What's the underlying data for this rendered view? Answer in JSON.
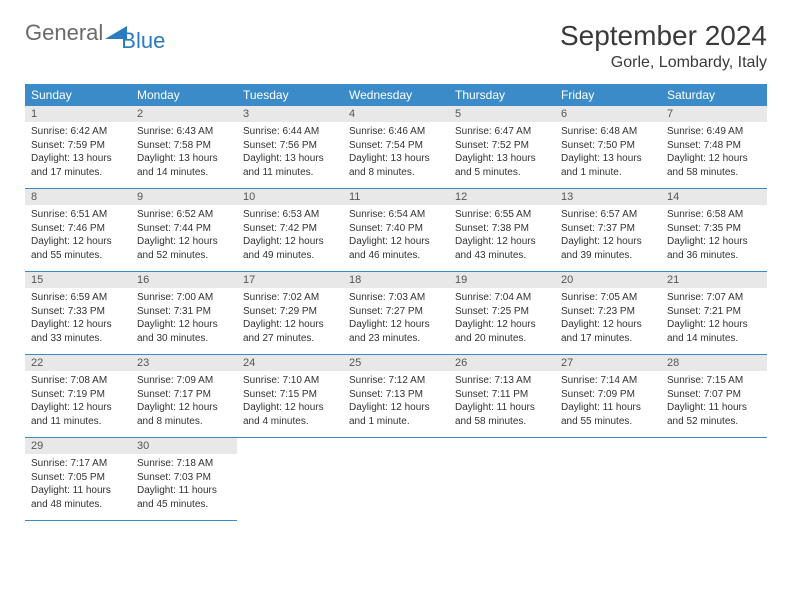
{
  "brand": {
    "part1": "General",
    "part2": "Blue"
  },
  "title": "September 2024",
  "location": "Gorle, Lombardy, Italy",
  "colors": {
    "header_bg": "#3b8bc9",
    "header_fg": "#ffffff",
    "daynum_bg": "#e8e8e8",
    "border": "#3b8bc9",
    "logo_gray": "#6a6a6a",
    "logo_blue": "#2a7bbf"
  },
  "day_headers": [
    "Sunday",
    "Monday",
    "Tuesday",
    "Wednesday",
    "Thursday",
    "Friday",
    "Saturday"
  ],
  "weeks": [
    [
      {
        "n": "1",
        "sr": "Sunrise: 6:42 AM",
        "ss": "Sunset: 7:59 PM",
        "d1": "Daylight: 13 hours",
        "d2": "and 17 minutes."
      },
      {
        "n": "2",
        "sr": "Sunrise: 6:43 AM",
        "ss": "Sunset: 7:58 PM",
        "d1": "Daylight: 13 hours",
        "d2": "and 14 minutes."
      },
      {
        "n": "3",
        "sr": "Sunrise: 6:44 AM",
        "ss": "Sunset: 7:56 PM",
        "d1": "Daylight: 13 hours",
        "d2": "and 11 minutes."
      },
      {
        "n": "4",
        "sr": "Sunrise: 6:46 AM",
        "ss": "Sunset: 7:54 PM",
        "d1": "Daylight: 13 hours",
        "d2": "and 8 minutes."
      },
      {
        "n": "5",
        "sr": "Sunrise: 6:47 AM",
        "ss": "Sunset: 7:52 PM",
        "d1": "Daylight: 13 hours",
        "d2": "and 5 minutes."
      },
      {
        "n": "6",
        "sr": "Sunrise: 6:48 AM",
        "ss": "Sunset: 7:50 PM",
        "d1": "Daylight: 13 hours",
        "d2": "and 1 minute."
      },
      {
        "n": "7",
        "sr": "Sunrise: 6:49 AM",
        "ss": "Sunset: 7:48 PM",
        "d1": "Daylight: 12 hours",
        "d2": "and 58 minutes."
      }
    ],
    [
      {
        "n": "8",
        "sr": "Sunrise: 6:51 AM",
        "ss": "Sunset: 7:46 PM",
        "d1": "Daylight: 12 hours",
        "d2": "and 55 minutes."
      },
      {
        "n": "9",
        "sr": "Sunrise: 6:52 AM",
        "ss": "Sunset: 7:44 PM",
        "d1": "Daylight: 12 hours",
        "d2": "and 52 minutes."
      },
      {
        "n": "10",
        "sr": "Sunrise: 6:53 AM",
        "ss": "Sunset: 7:42 PM",
        "d1": "Daylight: 12 hours",
        "d2": "and 49 minutes."
      },
      {
        "n": "11",
        "sr": "Sunrise: 6:54 AM",
        "ss": "Sunset: 7:40 PM",
        "d1": "Daylight: 12 hours",
        "d2": "and 46 minutes."
      },
      {
        "n": "12",
        "sr": "Sunrise: 6:55 AM",
        "ss": "Sunset: 7:38 PM",
        "d1": "Daylight: 12 hours",
        "d2": "and 43 minutes."
      },
      {
        "n": "13",
        "sr": "Sunrise: 6:57 AM",
        "ss": "Sunset: 7:37 PM",
        "d1": "Daylight: 12 hours",
        "d2": "and 39 minutes."
      },
      {
        "n": "14",
        "sr": "Sunrise: 6:58 AM",
        "ss": "Sunset: 7:35 PM",
        "d1": "Daylight: 12 hours",
        "d2": "and 36 minutes."
      }
    ],
    [
      {
        "n": "15",
        "sr": "Sunrise: 6:59 AM",
        "ss": "Sunset: 7:33 PM",
        "d1": "Daylight: 12 hours",
        "d2": "and 33 minutes."
      },
      {
        "n": "16",
        "sr": "Sunrise: 7:00 AM",
        "ss": "Sunset: 7:31 PM",
        "d1": "Daylight: 12 hours",
        "d2": "and 30 minutes."
      },
      {
        "n": "17",
        "sr": "Sunrise: 7:02 AM",
        "ss": "Sunset: 7:29 PM",
        "d1": "Daylight: 12 hours",
        "d2": "and 27 minutes."
      },
      {
        "n": "18",
        "sr": "Sunrise: 7:03 AM",
        "ss": "Sunset: 7:27 PM",
        "d1": "Daylight: 12 hours",
        "d2": "and 23 minutes."
      },
      {
        "n": "19",
        "sr": "Sunrise: 7:04 AM",
        "ss": "Sunset: 7:25 PM",
        "d1": "Daylight: 12 hours",
        "d2": "and 20 minutes."
      },
      {
        "n": "20",
        "sr": "Sunrise: 7:05 AM",
        "ss": "Sunset: 7:23 PM",
        "d1": "Daylight: 12 hours",
        "d2": "and 17 minutes."
      },
      {
        "n": "21",
        "sr": "Sunrise: 7:07 AM",
        "ss": "Sunset: 7:21 PM",
        "d1": "Daylight: 12 hours",
        "d2": "and 14 minutes."
      }
    ],
    [
      {
        "n": "22",
        "sr": "Sunrise: 7:08 AM",
        "ss": "Sunset: 7:19 PM",
        "d1": "Daylight: 12 hours",
        "d2": "and 11 minutes."
      },
      {
        "n": "23",
        "sr": "Sunrise: 7:09 AM",
        "ss": "Sunset: 7:17 PM",
        "d1": "Daylight: 12 hours",
        "d2": "and 8 minutes."
      },
      {
        "n": "24",
        "sr": "Sunrise: 7:10 AM",
        "ss": "Sunset: 7:15 PM",
        "d1": "Daylight: 12 hours",
        "d2": "and 4 minutes."
      },
      {
        "n": "25",
        "sr": "Sunrise: 7:12 AM",
        "ss": "Sunset: 7:13 PM",
        "d1": "Daylight: 12 hours",
        "d2": "and 1 minute."
      },
      {
        "n": "26",
        "sr": "Sunrise: 7:13 AM",
        "ss": "Sunset: 7:11 PM",
        "d1": "Daylight: 11 hours",
        "d2": "and 58 minutes."
      },
      {
        "n": "27",
        "sr": "Sunrise: 7:14 AM",
        "ss": "Sunset: 7:09 PM",
        "d1": "Daylight: 11 hours",
        "d2": "and 55 minutes."
      },
      {
        "n": "28",
        "sr": "Sunrise: 7:15 AM",
        "ss": "Sunset: 7:07 PM",
        "d1": "Daylight: 11 hours",
        "d2": "and 52 minutes."
      }
    ],
    [
      {
        "n": "29",
        "sr": "Sunrise: 7:17 AM",
        "ss": "Sunset: 7:05 PM",
        "d1": "Daylight: 11 hours",
        "d2": "and 48 minutes."
      },
      {
        "n": "30",
        "sr": "Sunrise: 7:18 AM",
        "ss": "Sunset: 7:03 PM",
        "d1": "Daylight: 11 hours",
        "d2": "and 45 minutes."
      },
      null,
      null,
      null,
      null,
      null
    ]
  ]
}
